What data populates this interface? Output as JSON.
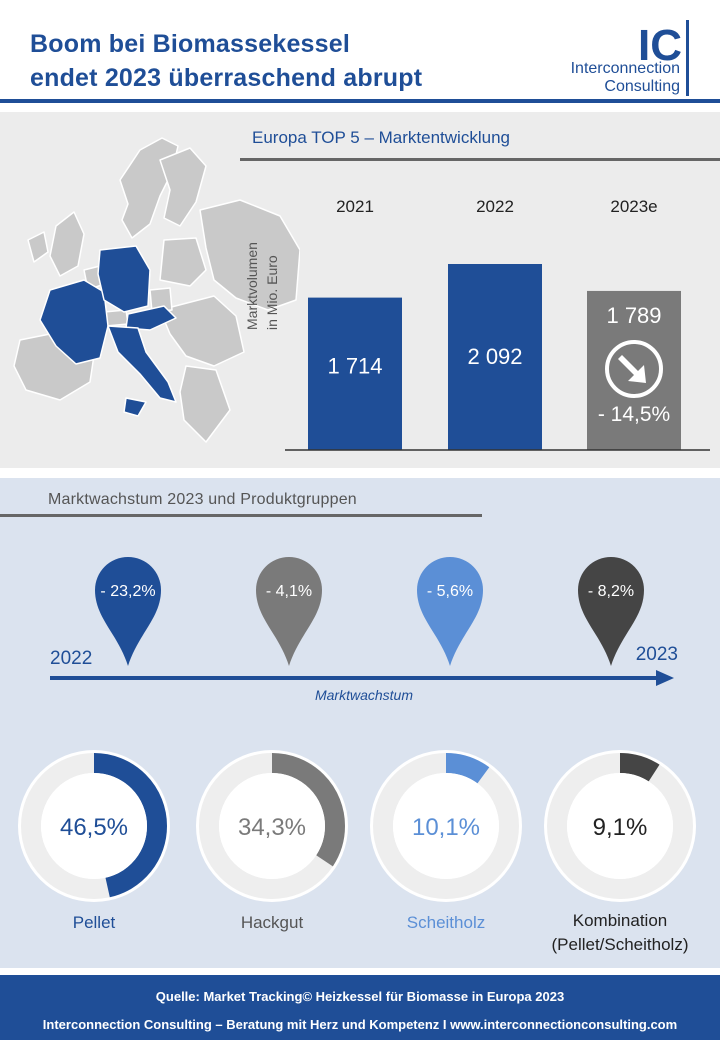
{
  "header": {
    "title_line1": "Boom bei Biomassekessel",
    "title_line2": "endet 2023 überraschend abrupt",
    "logo_mark": "IC",
    "logo_line1": "Interconnection",
    "logo_line2": "Consulting"
  },
  "colors": {
    "primary_blue": "#1f4e97",
    "gray": "#7a7a7a",
    "light_blue": "#5b8fd6",
    "dark_gray": "#454545",
    "track": "#eeeeee"
  },
  "market_section": {
    "title": "Europa TOP 5  – Marktentwicklung",
    "map_icon": "europe-map-icon"
  },
  "chart_data": [
    {
      "type": "bar",
      "categories": [
        "2021",
        "2022",
        "2023e"
      ],
      "values": [
        1714,
        2092,
        1789
      ],
      "value_labels": [
        "1 714",
        "2 092",
        "1 789"
      ],
      "ylabel": "Marktvolumen in Mio. Euro",
      "ylabel_line1": "Marktvolumen",
      "ylabel_line2": "in Mio. Euro",
      "bar_colors": [
        "#1f4e97",
        "#1f4e97",
        "#7a7a7a"
      ],
      "annotation": "- 14,5%",
      "annotation_icon": "arrow-down-right-icon",
      "ylim": [
        0,
        2092
      ]
    },
    {
      "type": "pie",
      "title": "Marktwachstum 2023 und Produktgruppen",
      "timeline_start": "2022",
      "timeline_end": "2023",
      "timeline_label": "Marktwachstum",
      "categories": [
        "Pellet",
        "Hackgut",
        "Scheitholz",
        "Kombination (Pellet/Scheitholz)"
      ],
      "growth": [
        -23.2,
        -4.1,
        -5.6,
        -8.2
      ],
      "growth_labels": [
        "- 23,2%",
        "- 4,1%",
        "- 5,6%",
        "- 8,2%"
      ],
      "shares": [
        46.5,
        34.3,
        10.1,
        9.1
      ],
      "share_labels": [
        "46,5%",
        "34,3%",
        "10,1%",
        "9,1%"
      ],
      "label_lines": [
        [
          "Pellet"
        ],
        [
          "Hackgut"
        ],
        [
          "Scheitholz"
        ],
        [
          "Kombination",
          "(Pellet/Scheitholz)"
        ]
      ],
      "colors": [
        "#1f4e97",
        "#7a7a7a",
        "#5b8fd6",
        "#454545"
      ]
    }
  ],
  "footer": {
    "source": "Quelle: Market Tracking© Heizkessel für Biomasse in Europa 2023",
    "tagline": "Interconnection Consulting – Beratung mit Herz und Kompetenz  I  www.interconnectionconsulting.com"
  }
}
